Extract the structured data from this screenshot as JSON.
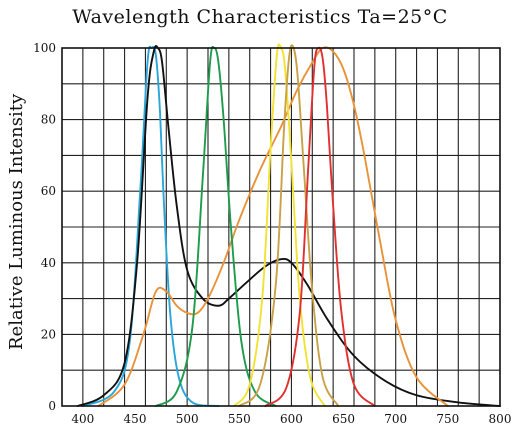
{
  "chart_data": {
    "type": "line",
    "title": "Wavelength Characteristics Ta=25°C",
    "xlabel": "",
    "ylabel": "Relative Luminous Intensity",
    "xlim": [
      380,
      800
    ],
    "ylim": [
      0,
      100
    ],
    "xticks": [
      400,
      450,
      500,
      550,
      600,
      650,
      700,
      750,
      800
    ],
    "yticks": [
      0,
      20,
      40,
      60,
      80,
      100
    ],
    "grid": true,
    "grid_x_step": 20,
    "grid_y_step": 10,
    "legend": "none",
    "series": [
      {
        "color": "#2aa6d8",
        "x": [
          400,
          430,
          445,
          455,
          462,
          466,
          470,
          474,
          478,
          484,
          492,
          505,
          530
        ],
        "y": [
          0,
          4,
          18,
          60,
          96,
          100,
          98,
          82,
          55,
          25,
          8,
          1,
          0
        ]
      },
      {
        "color": "#111111",
        "x": [
          395,
          420,
          440,
          452,
          462,
          468,
          472,
          476,
          482,
          490,
          500,
          515,
          530,
          540,
          555,
          575,
          590,
          600,
          615,
          635,
          660,
          690,
          720,
          760,
          800
        ],
        "y": [
          0,
          3,
          12,
          40,
          86,
          99,
          100,
          96,
          78,
          56,
          38,
          30,
          28,
          30,
          34,
          39,
          41,
          40,
          34,
          24,
          14,
          7,
          3,
          1,
          0
        ]
      },
      {
        "color": "#e8923a",
        "x": [
          415,
          440,
          458,
          470,
          480,
          490,
          500,
          510,
          520,
          535,
          550,
          570,
          590,
          605,
          620,
          630,
          640,
          650,
          660,
          670,
          685,
          700,
          720,
          750
        ],
        "y": [
          0,
          6,
          20,
          32,
          32,
          28,
          26,
          26,
          30,
          40,
          52,
          66,
          78,
          88,
          96,
          100,
          99,
          94,
          84,
          70,
          46,
          24,
          8,
          0
        ]
      },
      {
        "color": "#1f9b4b",
        "x": [
          470,
          490,
          505,
          515,
          522,
          526,
          530,
          535,
          542,
          552,
          565,
          585
        ],
        "y": [
          0,
          4,
          22,
          64,
          96,
          100,
          96,
          80,
          50,
          18,
          4,
          0
        ]
      },
      {
        "color": "#f2e234",
        "x": [
          545,
          560,
          572,
          580,
          586,
          590,
          594,
          600,
          608,
          618,
          632
        ],
        "y": [
          0,
          6,
          30,
          72,
          98,
          100,
          94,
          68,
          30,
          8,
          0
        ]
      },
      {
        "color": "#c9a248",
        "x": [
          550,
          570,
          585,
          593,
          598,
          602,
          606,
          612,
          620,
          630,
          645
        ],
        "y": [
          0,
          6,
          34,
          78,
          98,
          100,
          92,
          66,
          32,
          8,
          0
        ]
      },
      {
        "color": "#e0302f",
        "x": [
          575,
          595,
          608,
          616,
          622,
          626,
          630,
          634,
          640,
          648,
          660,
          680
        ],
        "y": [
          0,
          5,
          26,
          66,
          95,
          100,
          97,
          84,
          56,
          26,
          6,
          0
        ]
      }
    ]
  }
}
